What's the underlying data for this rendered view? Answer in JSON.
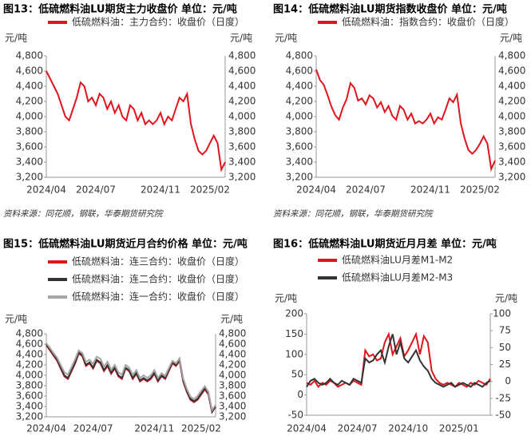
{
  "chart_data": [
    {
      "type": "line",
      "title": "图13：低硫燃料油LU期货主力收盘价 单位：元/吨",
      "y_label": "元/吨",
      "y2_label": "元/吨",
      "source": "资料来源：同花顺，钢联，华泰期货研究院",
      "categories": [
        "2024/04",
        null,
        null,
        null,
        null,
        null,
        null,
        null,
        null,
        null,
        null,
        null,
        null,
        "2024/07",
        null,
        null,
        null,
        null,
        null,
        null,
        null,
        null,
        null,
        null,
        null,
        null,
        null,
        null,
        null,
        null,
        "2024/11",
        null,
        null,
        null,
        null,
        null,
        null,
        null,
        null,
        null,
        null,
        null,
        null,
        "2025/02",
        null,
        null,
        null,
        null
      ],
      "series": [
        {
          "name": "低硫燃料油：主力合约：收盘价（日度）",
          "color": "#e0141c",
          "values": [
            4600,
            4500,
            4400,
            4300,
            4150,
            4000,
            3950,
            4100,
            4250,
            4450,
            4400,
            4200,
            4250,
            4150,
            4300,
            4250,
            4100,
            4200,
            4050,
            4150,
            4000,
            3950,
            4150,
            4100,
            3950,
            4050,
            3900,
            3950,
            3900,
            3950,
            4050,
            3900,
            4000,
            3950,
            4100,
            4250,
            4200,
            4300,
            3900,
            3700,
            3550,
            3500,
            3550,
            3650,
            3750,
            3650,
            3300,
            3400
          ]
        }
      ],
      "ylim": [
        3200,
        4800
      ],
      "yticks": [
        {
          "value": 3200,
          "label": "3,200"
        },
        {
          "value": 3400,
          "label": "3,400"
        },
        {
          "value": 3600,
          "label": "3,600"
        },
        {
          "value": 3800,
          "label": "3,800"
        },
        {
          "value": 4000,
          "label": "4,000"
        },
        {
          "value": 4200,
          "label": "4,200"
        },
        {
          "value": 4400,
          "label": "4,400"
        },
        {
          "value": 4600,
          "label": "4,600"
        },
        {
          "value": 4800,
          "label": "4,800"
        }
      ]
    },
    {
      "type": "line",
      "title": "图14：低硫燃料油LU期货指数收盘价 单位：元/吨",
      "y_label": "元/吨",
      "y2_label": "元/吨",
      "source": "资料来源：同花顺，钢联，华泰期货研究院",
      "categories": [
        "2024/04",
        null,
        null,
        null,
        null,
        null,
        null,
        null,
        null,
        null,
        null,
        null,
        null,
        "2024/07",
        null,
        null,
        null,
        null,
        null,
        null,
        null,
        null,
        null,
        null,
        null,
        null,
        null,
        null,
        null,
        null,
        "2024/11",
        null,
        null,
        null,
        null,
        null,
        null,
        null,
        null,
        null,
        null,
        null,
        null,
        "2025/02",
        null,
        null,
        null,
        null
      ],
      "series": [
        {
          "name": "低硫燃料油：指数合约：收盘价（日度）",
          "color": "#e0141c",
          "values": [
            4620,
            4480,
            4420,
            4280,
            4130,
            4020,
            3960,
            4120,
            4230,
            4440,
            4380,
            4210,
            4240,
            4160,
            4280,
            4240,
            4120,
            4190,
            4060,
            4140,
            4010,
            3960,
            4140,
            4090,
            3960,
            4040,
            3910,
            3940,
            3910,
            3960,
            4040,
            3910,
            3990,
            3960,
            4090,
            4240,
            4190,
            4290,
            3910,
            3710,
            3560,
            3510,
            3560,
            3640,
            3740,
            3640,
            3310,
            3420
          ]
        }
      ],
      "ylim": [
        3200,
        4800
      ],
      "yticks": [
        {
          "value": 3200,
          "label": "3,200"
        },
        {
          "value": 3400,
          "label": "3,400"
        },
        {
          "value": 3600,
          "label": "3,600"
        },
        {
          "value": 3800,
          "label": "3,800"
        },
        {
          "value": 4000,
          "label": "4,000"
        },
        {
          "value": 4200,
          "label": "4,200"
        },
        {
          "value": 4400,
          "label": "4,400"
        },
        {
          "value": 4600,
          "label": "4,600"
        },
        {
          "value": 4800,
          "label": "4,800"
        }
      ]
    },
    {
      "type": "line",
      "title": "图15：低硫燃料油LU期货近月合约价格 单位：元/吨",
      "y_label": "元/吨",
      "y2_label": "元/吨",
      "categories": [
        "2024/04",
        null,
        null,
        null,
        null,
        null,
        null,
        null,
        null,
        null,
        null,
        null,
        null,
        "2024/07",
        null,
        null,
        null,
        null,
        null,
        null,
        null,
        null,
        null,
        null,
        null,
        null,
        null,
        null,
        null,
        null,
        "2024/11",
        null,
        null,
        null,
        null,
        null,
        null,
        null,
        null,
        null,
        null,
        null,
        null,
        "2025/02",
        null,
        null,
        null,
        null
      ],
      "series": [
        {
          "name": "低硫燃料油：连三合约：收盘价（日度）",
          "color": "#e0141c",
          "values": [
            4580,
            4480,
            4380,
            4280,
            4130,
            3980,
            3930,
            4080,
            4230,
            4420,
            4370,
            4180,
            4230,
            4130,
            4280,
            4230,
            4080,
            4180,
            4030,
            4130,
            3980,
            3930,
            4130,
            4080,
            3930,
            4030,
            3880,
            3930,
            3880,
            3930,
            4030,
            3880,
            3980,
            3930,
            4080,
            4230,
            4180,
            4280,
            3880,
            3680,
            3530,
            3480,
            3530,
            3630,
            3730,
            3630,
            3290,
            3390
          ]
        },
        {
          "name": "低硫燃料油：连二合约：收盘价（日度）",
          "color": "#333333",
          "values": [
            4600,
            4500,
            4400,
            4300,
            4150,
            4000,
            3950,
            4100,
            4250,
            4440,
            4390,
            4200,
            4250,
            4150,
            4300,
            4250,
            4100,
            4200,
            4050,
            4150,
            4000,
            3950,
            4150,
            4100,
            3950,
            4050,
            3900,
            3950,
            3900,
            3950,
            4050,
            3900,
            4000,
            3950,
            4100,
            4250,
            4200,
            4300,
            3900,
            3700,
            3550,
            3500,
            3550,
            3650,
            3750,
            3650,
            3300,
            3400
          ]
        },
        {
          "name": "低硫燃料油：连一合约：收盘价（日度）",
          "color": "#a6a6a6",
          "values": [
            4620,
            4530,
            4430,
            4340,
            4200,
            4060,
            4010,
            4160,
            4310,
            4480,
            4430,
            4260,
            4300,
            4220,
            4360,
            4320,
            4170,
            4260,
            4110,
            4200,
            4060,
            4010,
            4200,
            4150,
            4010,
            4100,
            3950,
            4000,
            3950,
            4000,
            4100,
            3950,
            4040,
            3990,
            4140,
            4280,
            4230,
            4330,
            3940,
            3740,
            3590,
            3540,
            3600,
            3700,
            3790,
            3680,
            3330,
            3430
          ]
        }
      ],
      "ylim": [
        3200,
        4800
      ],
      "yticks": [
        {
          "value": 3200,
          "label": "3,200"
        },
        {
          "value": 3400,
          "label": "3,400"
        },
        {
          "value": 3600,
          "label": "3,600"
        },
        {
          "value": 3800,
          "label": "3,800"
        },
        {
          "value": 4000,
          "label": "4,000"
        },
        {
          "value": 4200,
          "label": "4,200"
        },
        {
          "value": 4400,
          "label": "4,400"
        },
        {
          "value": 4600,
          "label": "4,600"
        },
        {
          "value": 4800,
          "label": "4,800"
        }
      ]
    },
    {
      "type": "line",
      "title": "图16：低硫燃料油LU期货近月月差 单位：元/吨",
      "y_label": "元/吨",
      "y2_label": "元/吨",
      "categories": [
        "2024/04",
        null,
        null,
        null,
        null,
        null,
        null,
        null,
        null,
        null,
        null,
        null,
        null,
        "2024/07",
        null,
        null,
        null,
        null,
        null,
        null,
        null,
        null,
        null,
        null,
        null,
        null,
        "2024/10",
        null,
        null,
        null,
        null,
        null,
        null,
        null,
        null,
        null,
        null,
        null,
        null,
        "2025/01",
        null,
        null,
        null,
        null,
        null,
        null,
        null,
        null
      ],
      "series": [
        {
          "name": "低硫燃料油LU月差M1-M2",
          "color": "#e0141c",
          "values": [
            30,
            25,
            35,
            20,
            30,
            25,
            35,
            30,
            20,
            25,
            30,
            25,
            35,
            30,
            25,
            110,
            95,
            100,
            85,
            90,
            130,
            150,
            100,
            120,
            140,
            95,
            110,
            130,
            150,
            100,
            145,
            130,
            60,
            40,
            30,
            25,
            30,
            25,
            20,
            30,
            25,
            20,
            30,
            25,
            35,
            30,
            25,
            40
          ]
        },
        {
          "name": "低硫燃料油LU月差M2-M3",
          "color": "#333333",
          "values": [
            20,
            35,
            40,
            30,
            25,
            30,
            40,
            30,
            25,
            35,
            30,
            25,
            40,
            35,
            30,
            90,
            80,
            85,
            100,
            110,
            80,
            120,
            150,
            100,
            130,
            90,
            80,
            95,
            110,
            85,
            70,
            60,
            40,
            30,
            25,
            20,
            25,
            30,
            20,
            25,
            30,
            25,
            20,
            30,
            25,
            20,
            30,
            35
          ]
        }
      ],
      "ylim": [
        -50,
        200
      ],
      "yticks": [
        -50,
        0,
        50,
        100,
        150,
        200
      ],
      "y2lim": [
        -50,
        100
      ],
      "y2ticks": [
        -50,
        -25,
        0,
        25,
        50,
        75,
        100
      ]
    }
  ]
}
